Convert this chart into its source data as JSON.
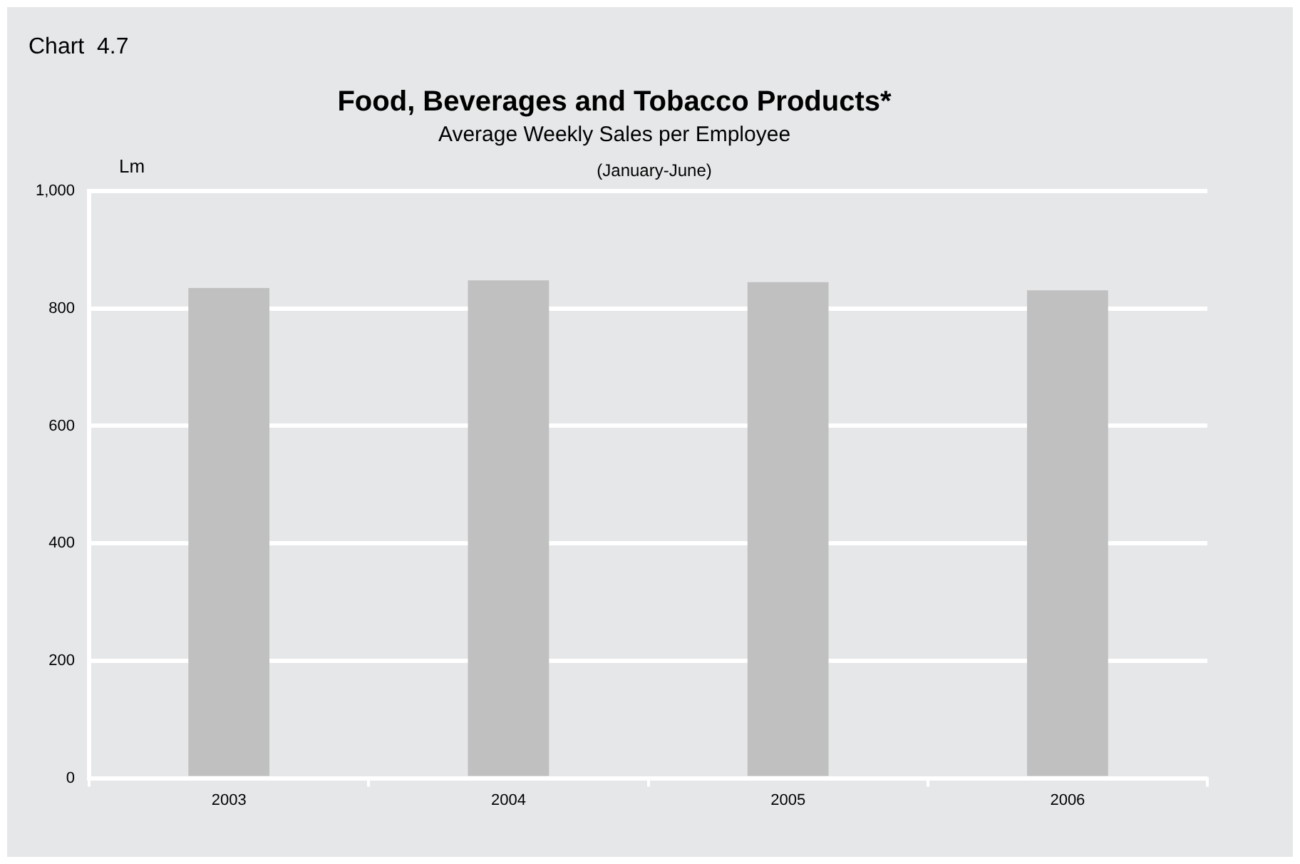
{
  "chart_data": {
    "type": "bar",
    "title": "Food, Beverages and Tobacco Products*",
    "subtitle": "Average Weekly Sales per Employee",
    "ylabel": "Lm",
    "annotations": [
      "Chart  4.7",
      "(January-June)"
    ],
    "categories": [
      "2003",
      "2004",
      "2005",
      "2006"
    ],
    "series": [
      {
        "color": "#c0c0c0",
        "values": [
          835,
          848,
          845,
          831
        ]
      }
    ],
    "ylim": [
      0,
      1000
    ],
    "yticks": [
      0,
      200,
      400,
      600,
      800,
      {
        "value": 1000,
        "label": "1,000"
      }
    ],
    "grid": "y",
    "legend": false
  }
}
